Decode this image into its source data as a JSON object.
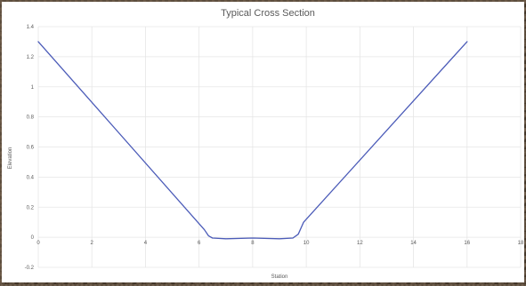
{
  "chart_data": {
    "type": "line",
    "title": "Typical Cross Section",
    "xlabel": "Station",
    "ylabel": "Elevation",
    "xlim": [
      0,
      18
    ],
    "ylim": [
      -0.2,
      1.4
    ],
    "x_ticks": [
      0,
      2,
      4,
      6,
      8,
      10,
      12,
      14,
      16,
      18
    ],
    "x_tick_labels": [
      "0",
      "2",
      "4",
      "6",
      "8",
      "10",
      "12",
      "14",
      "16",
      "18"
    ],
    "y_ticks": [
      -0.2,
      0,
      0.2,
      0.4,
      0.6,
      0.8,
      1,
      1.2,
      1.4
    ],
    "y_tick_labels": [
      "-0.2",
      "0",
      "0.2",
      "0.4",
      "0.6",
      "0.8",
      "1",
      "1.2",
      "1.4"
    ],
    "grid": true,
    "legend": "none",
    "series": [
      {
        "color": "#4b5bb8",
        "x": [
          0,
          6.2,
          6.35,
          6.5,
          7,
          8,
          9,
          9.5,
          9.7,
          9.9,
          16
        ],
        "y": [
          1.3,
          0.05,
          0.01,
          -0.005,
          -0.01,
          -0.005,
          -0.01,
          -0.005,
          0.02,
          0.1,
          1.3
        ]
      }
    ]
  }
}
